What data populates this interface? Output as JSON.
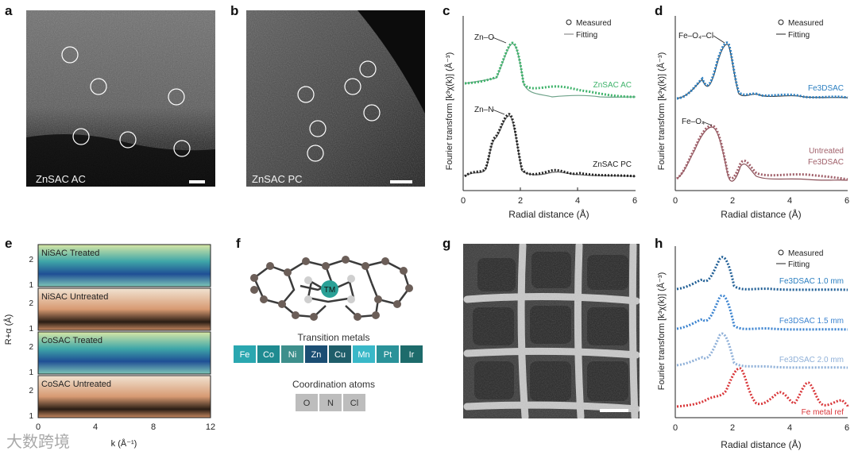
{
  "panels": {
    "a": {
      "label": "a",
      "caption": "ZnSAC AC"
    },
    "b": {
      "label": "b",
      "caption": "ZnSAC PC"
    },
    "c": {
      "label": "c",
      "ylabel": "Fourier transform [k³χ(k)] (Å⁻³)",
      "xlabel": "Radial distance (Å)",
      "xticks": [
        "0",
        "2",
        "4",
        "6"
      ],
      "legend": [
        "Measured",
        "Fitting"
      ],
      "series_labels": [
        "ZnSAC AC",
        "ZnSAC PC"
      ],
      "annotations": [
        "Zn–O",
        "Zn–N"
      ]
    },
    "d": {
      "label": "d",
      "ylabel": "Fourier transform [k³χ(k)] (Å⁻³)",
      "xlabel": "Radial distance (Å)",
      "xticks": [
        "0",
        "2",
        "4",
        "6"
      ],
      "legend": [
        "Measured",
        "Fitting"
      ],
      "series_labels": [
        "Fe3DSAC",
        "Untreated",
        "Fe3DSAC"
      ],
      "annotations": [
        "Fe–O₄–Cl",
        "Fe–O₄"
      ]
    },
    "e": {
      "label": "e",
      "ylabel": "R+α (Å)",
      "xlabel": "k (Å⁻¹)",
      "xticks": [
        "0",
        "4",
        "8",
        "12"
      ],
      "yticks": [
        "2",
        "1"
      ],
      "rows": [
        "NiSAC Treated",
        "NiSAC Untreated",
        "CoSAC Treated",
        "CoSAC Untreated"
      ]
    },
    "f": {
      "label": "f",
      "tm_label": "TM",
      "tm_heading": "Transition metals",
      "metals": [
        {
          "name": "Fe",
          "color": "#2aa7b0"
        },
        {
          "name": "Co",
          "color": "#1f8b91"
        },
        {
          "name": "Ni",
          "color": "#3d8f8c"
        },
        {
          "name": "Zn",
          "color": "#1b4e73"
        },
        {
          "name": "Cu",
          "color": "#1f5e6a"
        },
        {
          "name": "Mn",
          "color": "#39b8c8"
        },
        {
          "name": "Pt",
          "color": "#2a9299"
        },
        {
          "name": "Ir",
          "color": "#1d6b6b"
        }
      ],
      "coord_heading": "Coordination atoms",
      "coord_atoms": [
        "O",
        "N",
        "Cl"
      ]
    },
    "g": {
      "label": "g"
    },
    "h": {
      "label": "h",
      "ylabel": "Fourier transform [k³χ(k)] (Å⁻³)",
      "xlabel": "Radial distance (Å)",
      "xticks": [
        "0",
        "2",
        "4",
        "6"
      ],
      "legend": [
        "Measured",
        "Fitting"
      ],
      "series_labels": [
        "Fe3DSAC 1.0 mm",
        "Fe3DSAC 1.5 mm",
        "Fe3DSAC 2.0 mm",
        "Fe metal ref"
      ]
    }
  },
  "colors": {
    "green": "#3fb36b",
    "black": "#222222",
    "blue": "#2b7fc1",
    "mauve": "#a0606a",
    "lightblue": "#5b96d6",
    "paleblue": "#8fb0d8",
    "red": "#d9373a"
  },
  "watermark": "大数跨境"
}
